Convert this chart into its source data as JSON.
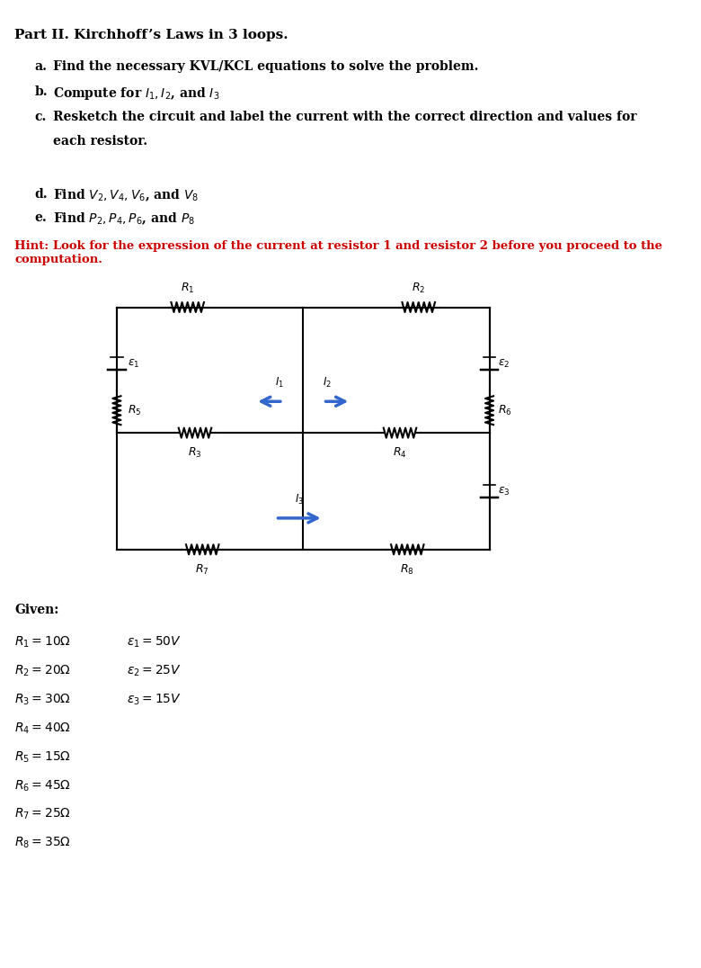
{
  "title": "Part II. Kirchhoff’s Laws in 3 loops.",
  "items": [
    {
      "label": "a.",
      "text": "Find the necessary KVL/KCL equations to solve the problem."
    },
    {
      "label": "b.",
      "text": "Compute for $I_1, I_2$, and $I_3$"
    },
    {
      "label": "c.",
      "text": "Resketch the circuit and label the current with the correct direction and values for\n      each resistor."
    },
    {
      "label": "d.",
      "text": "Find $V_2, V_4, V_6$, and $V_8$"
    },
    {
      "label": "e.",
      "text": "Find $P_2, P_4, P_6$, and $P_8$"
    }
  ],
  "hint": "Hint: Look for the expression of the current at resistor 1 and resistor 2 before you proceed to the\ncomputation.",
  "given_title": "Given:",
  "resistors": [
    "R_1 = 10\\Omega",
    "R_2 = 20\\Omega",
    "R_3 = 30\\Omega",
    "R_4 = 40\\Omega",
    "R_5 = 15\\Omega",
    "R_6 = 45\\Omega",
    "R_7 = 25\\Omega",
    "R_8 = 35\\Omega"
  ],
  "emfs": [
    "\\varepsilon_1 = 50V",
    "\\varepsilon_2 = 25V",
    "\\varepsilon_3 = 15V"
  ],
  "bg_color": "#ffffff",
  "text_color": "#000000",
  "hint_color": "#cc0000",
  "circuit_line_color": "#000000",
  "arrow_color": "#3366cc"
}
